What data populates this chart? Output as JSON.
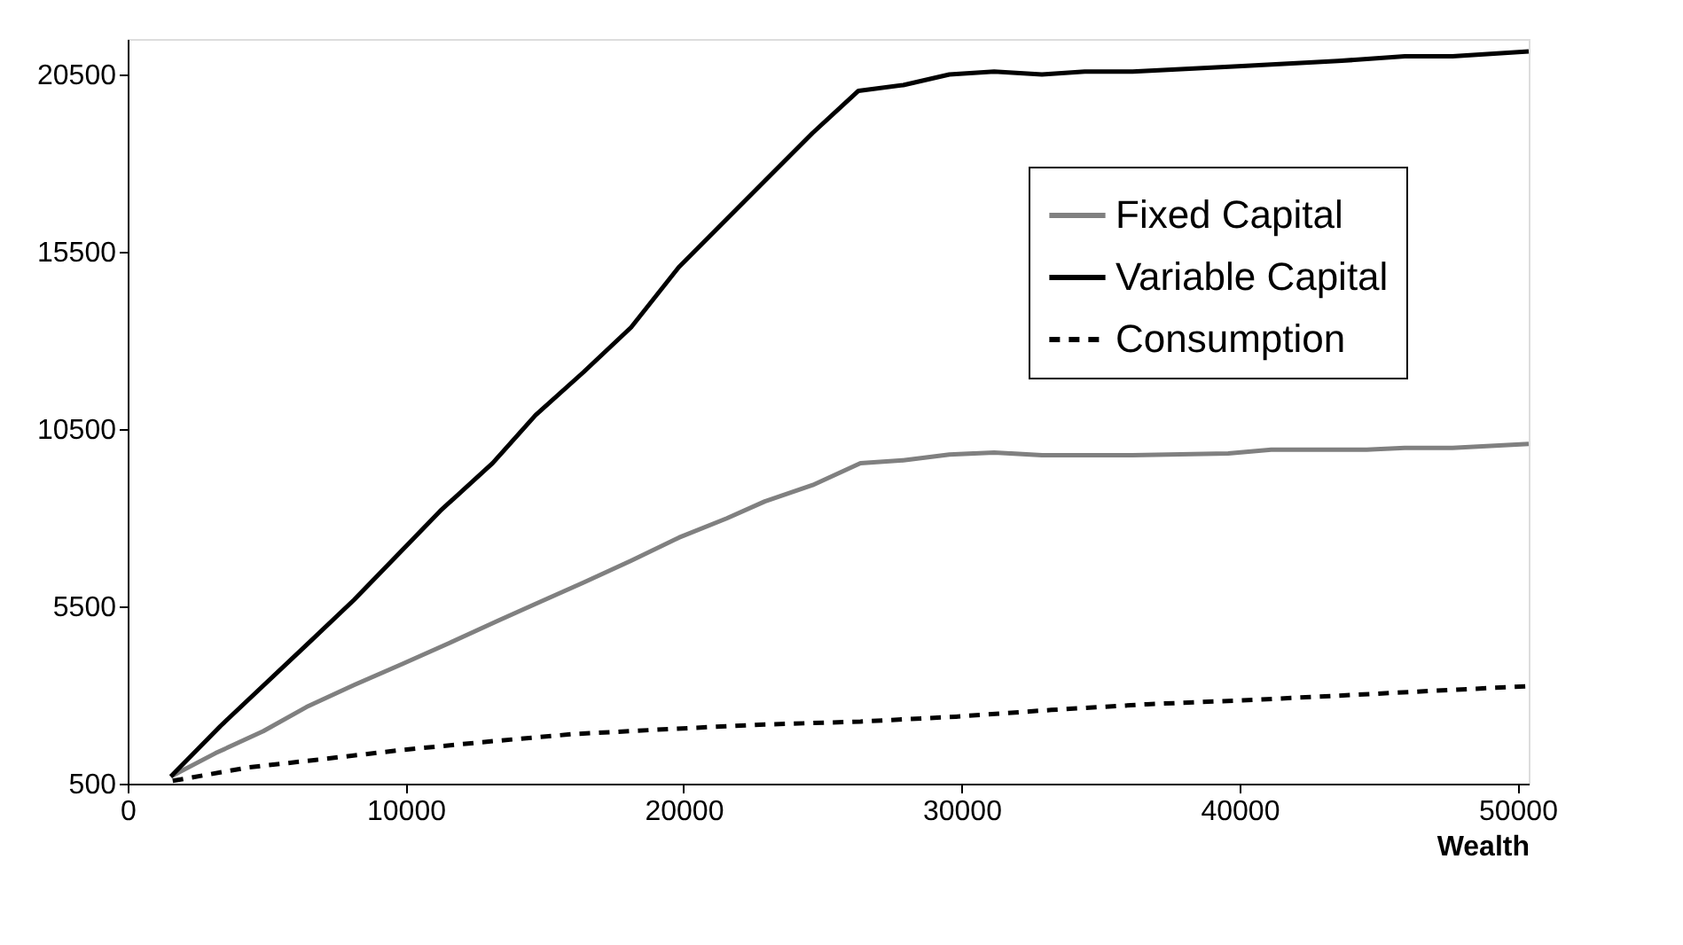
{
  "chart_data": {
    "type": "line",
    "xlabel": "Wealth",
    "xlim": [
      0,
      50400
    ],
    "ylim": [
      500,
      21500
    ],
    "xticks": [
      0,
      10000,
      20000,
      30000,
      40000,
      50000
    ],
    "yticks": [
      500,
      5500,
      10500,
      15500,
      20500
    ],
    "grid": false,
    "legend": "top right",
    "marker": "none",
    "series": [
      {
        "name": "Fixed Capital",
        "color": "#808080",
        "line_style": "solid",
        "x": [
          1550,
          3160,
          4880,
          6430,
          8140,
          9860,
          11580,
          13300,
          14670,
          16390,
          18110,
          19830,
          21550,
          22920,
          24640,
          26360,
          27900,
          29560,
          31170,
          32890,
          36150,
          39590,
          41140,
          44570,
          45940,
          47660,
          50400
        ],
        "values": [
          700,
          1360,
          1980,
          2660,
          3280,
          3870,
          4470,
          5090,
          5570,
          6170,
          6790,
          7440,
          7980,
          8460,
          8920,
          9540,
          9620,
          9780,
          9840,
          9760,
          9760,
          9810,
          9920,
          9920,
          9970,
          9970,
          10080
        ]
      },
      {
        "name": "Variable Capital",
        "color": "#000000",
        "line_style": "solid",
        "x": [
          1550,
          3330,
          6430,
          8140,
          11240,
          13130,
          14670,
          16390,
          18110,
          19830,
          22920,
          24640,
          26290,
          27900,
          29560,
          31170,
          32890,
          34430,
          36150,
          40100,
          43540,
          45940,
          47660,
          50400
        ],
        "values": [
          700,
          2120,
          4410,
          5680,
          8190,
          9540,
          10890,
          12100,
          13370,
          15070,
          17500,
          18850,
          20040,
          20200,
          20500,
          20580,
          20500,
          20580,
          20580,
          20740,
          20880,
          21010,
          21010,
          21150
        ]
      },
      {
        "name": "Consumption",
        "color": "#000000",
        "line_style": "dashed",
        "x": [
          1620,
          4360,
          6770,
          9860,
          13300,
          16050,
          19490,
          22920,
          26360,
          29800,
          33230,
          36670,
          40100,
          43540,
          46980,
          50400
        ],
        "values": [
          580,
          960,
          1170,
          1450,
          1710,
          1900,
          2040,
          2170,
          2250,
          2390,
          2580,
          2740,
          2850,
          2980,
          3120,
          3250
        ]
      }
    ]
  }
}
